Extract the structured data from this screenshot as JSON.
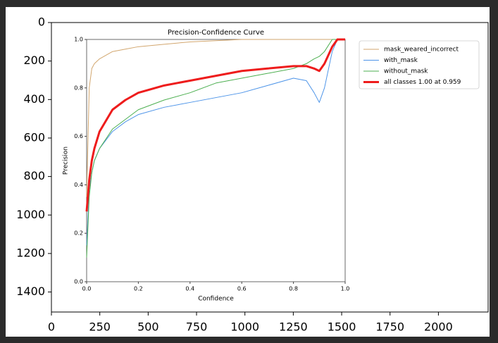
{
  "chart_data": [
    {
      "type": "image",
      "xlim": [
        0,
        2257
      ],
      "ylim": [
        1504,
        0
      ],
      "xticks": [
        0,
        250,
        500,
        750,
        1000,
        1250,
        1500,
        1750,
        2000
      ],
      "yticks": [
        0,
        200,
        400,
        600,
        800,
        1000,
        1200,
        1400
      ]
    },
    {
      "type": "line",
      "title": "Precision-Confidence Curve",
      "xlabel": "Confidence",
      "ylabel": "Precision",
      "xlim": [
        0,
        1
      ],
      "ylim": [
        0,
        1
      ],
      "xticks": [
        {
          "value": 0,
          "label": "0.0"
        },
        0.2,
        0.4,
        0.6,
        0.8,
        {
          "value": 1,
          "label": "1.0"
        }
      ],
      "yticks": [
        {
          "value": 0,
          "label": "0.0"
        },
        0.2,
        0.4,
        0.6,
        0.8,
        {
          "value": 1,
          "label": "1.0"
        }
      ],
      "legend": "right",
      "x": [
        0,
        0.01,
        0.02,
        0.03,
        0.05,
        0.1,
        0.15,
        0.2,
        0.3,
        0.4,
        0.5,
        0.6,
        0.7,
        0.8,
        0.85,
        0.88,
        0.9,
        0.92,
        0.95,
        0.97,
        1.0
      ],
      "series": [
        {
          "name": "mask_weared_incorrect",
          "color": "#d2a66e",
          "linewidth": 1,
          "values": [
            0.35,
            0.8,
            0.88,
            0.9,
            0.92,
            0.95,
            0.96,
            0.97,
            0.98,
            0.99,
            0.995,
            1,
            1,
            1,
            1,
            1,
            1,
            1,
            1,
            1,
            1
          ]
        },
        {
          "name": "with_mask",
          "color": "#4d94e8",
          "linewidth": 1,
          "values": [
            0.15,
            0.38,
            0.45,
            0.5,
            0.55,
            0.62,
            0.66,
            0.69,
            0.72,
            0.74,
            0.76,
            0.78,
            0.81,
            0.84,
            0.83,
            0.78,
            0.74,
            0.8,
            0.95,
            1,
            1
          ]
        },
        {
          "name": "without_mask",
          "color": "#4caf50",
          "linewidth": 1,
          "values": [
            0.1,
            0.35,
            0.45,
            0.5,
            0.55,
            0.63,
            0.67,
            0.71,
            0.75,
            0.78,
            0.82,
            0.84,
            0.86,
            0.88,
            0.9,
            0.92,
            0.93,
            0.95,
            1,
            1,
            1
          ]
        },
        {
          "name": "all classes 1.00 at 0.959",
          "color": "#ee1c1c",
          "linewidth": 3,
          "values": [
            0.29,
            0.42,
            0.5,
            0.55,
            0.62,
            0.71,
            0.75,
            0.78,
            0.81,
            0.83,
            0.85,
            0.87,
            0.88,
            0.89,
            0.89,
            0.88,
            0.87,
            0.9,
            0.97,
            1,
            1
          ]
        }
      ]
    }
  ]
}
